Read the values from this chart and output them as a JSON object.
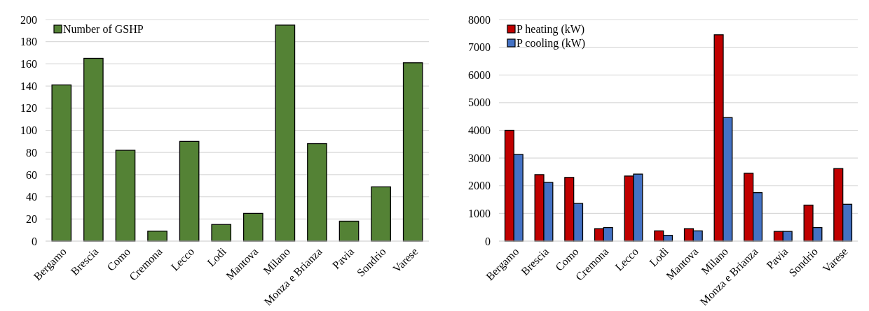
{
  "chart_data": [
    {
      "type": "bar",
      "categories": [
        "Bergamo",
        "Brescia",
        "Como",
        "Cremona",
        "Lecco",
        "Lodi",
        "Mantova",
        "Milano",
        "Monza e Brianza",
        "Pavia",
        "Sondrio",
        "Varese"
      ],
      "series": [
        {
          "name": "Number of GSHP",
          "color": "#548235",
          "values": [
            141,
            165,
            82,
            9,
            90,
            15,
            25,
            195,
            88,
            18,
            49,
            161
          ]
        }
      ],
      "ylim": [
        0,
        200
      ],
      "yticks": [
        0,
        20,
        40,
        60,
        80,
        100,
        120,
        140,
        160,
        180,
        200
      ],
      "grid": "y",
      "legend": "top left"
    },
    {
      "type": "bar",
      "categories": [
        "Bergamo",
        "Brescia",
        "Como",
        "Cremona",
        "Lecco",
        "Lodi",
        "Mantova",
        "Milano",
        "Monza e Brianza",
        "Pavia",
        "Sondrio",
        "Varese"
      ],
      "series": [
        {
          "name": "P heating (kW)",
          "color": "#c00000",
          "values": [
            4000,
            2400,
            2300,
            450,
            2350,
            370,
            450,
            7450,
            2450,
            350,
            1300,
            2620
          ]
        },
        {
          "name": "P cooling (kW)",
          "color": "#4472c4",
          "values": [
            3130,
            2120,
            1360,
            490,
            2420,
            210,
            370,
            4460,
            1750,
            350,
            490,
            1330
          ]
        }
      ],
      "ylim": [
        0,
        8000
      ],
      "yticks": [
        0,
        1000,
        2000,
        3000,
        4000,
        5000,
        6000,
        7000,
        8000
      ],
      "grid": "y",
      "legend": "top left"
    }
  ]
}
